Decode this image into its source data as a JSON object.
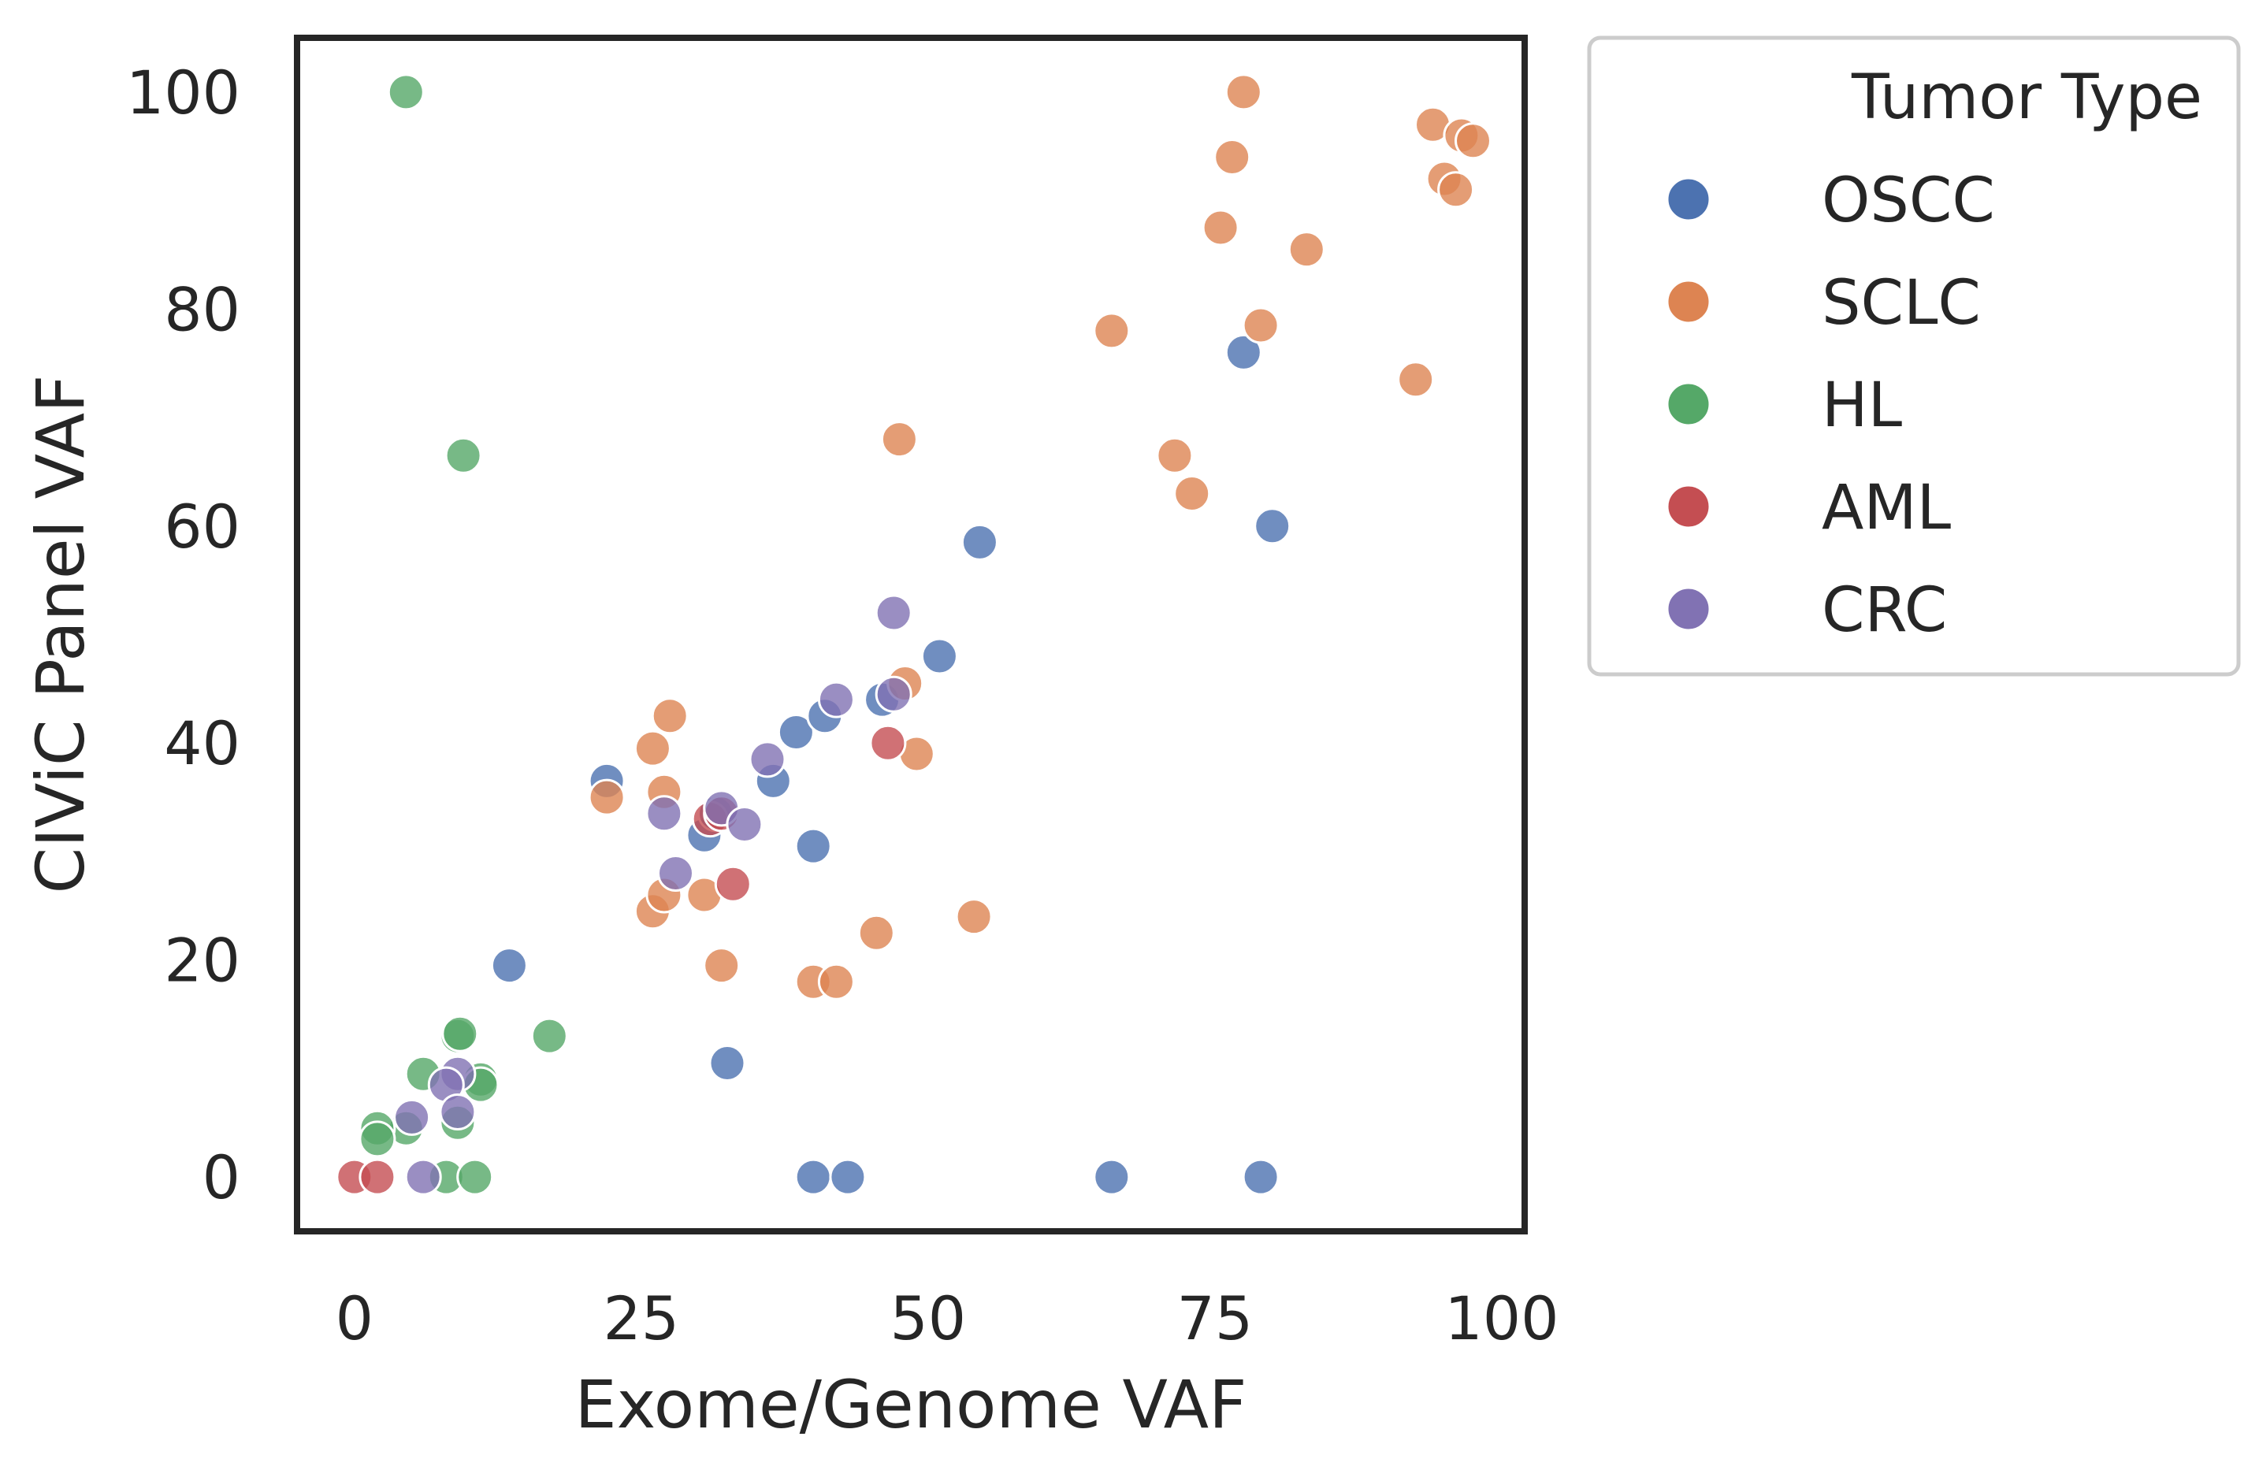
{
  "chart_data": {
    "type": "scatter",
    "xlabel": "Exome/Genome VAF",
    "ylabel": "CIViC Panel VAF",
    "xlim": [
      -5,
      102
    ],
    "ylim": [
      -5,
      105
    ],
    "xticks": [
      0,
      25,
      50,
      75,
      100
    ],
    "yticks": [
      0,
      20,
      40,
      60,
      80,
      100
    ],
    "grid": false,
    "legend": {
      "title": "Tumor Type",
      "placement": "outside-right-top"
    },
    "series": [
      {
        "name": "OSCC",
        "color": "#4c72b0",
        "points": [
          [
            22,
            36.5
          ],
          [
            30.5,
            31.5
          ],
          [
            31.5,
            33.5
          ],
          [
            36.5,
            36.5
          ],
          [
            38.5,
            41
          ],
          [
            41,
            42.5
          ],
          [
            46,
            44
          ],
          [
            51,
            48
          ],
          [
            54.5,
            58.5
          ],
          [
            40,
            30.5
          ],
          [
            13.5,
            19.5
          ],
          [
            32.5,
            10.5
          ],
          [
            40,
            0
          ],
          [
            43,
            0
          ],
          [
            66,
            0
          ],
          [
            79,
            0
          ],
          [
            77.5,
            76
          ],
          [
            80,
            60
          ]
        ]
      },
      {
        "name": "SCLC",
        "color": "#dd8452",
        "points": [
          [
            77.5,
            100
          ],
          [
            94,
            97
          ],
          [
            96.5,
            96
          ],
          [
            97.5,
            95.5
          ],
          [
            95,
            92
          ],
          [
            96,
            91
          ],
          [
            76.5,
            94
          ],
          [
            75.5,
            87.5
          ],
          [
            83,
            85.5
          ],
          [
            66,
            78
          ],
          [
            79,
            78.5
          ],
          [
            92.5,
            73.5
          ],
          [
            71.5,
            66.5
          ],
          [
            73,
            63
          ],
          [
            47.5,
            68
          ],
          [
            48,
            45.5
          ],
          [
            49,
            39
          ],
          [
            27.5,
            42.5
          ],
          [
            26,
            39.5
          ],
          [
            27,
            35.5
          ],
          [
            22,
            35
          ],
          [
            26,
            24.5
          ],
          [
            27,
            26
          ],
          [
            30.5,
            26
          ],
          [
            32,
            19.5
          ],
          [
            40,
            18
          ],
          [
            42,
            18
          ],
          [
            45.5,
            22.5
          ],
          [
            54,
            24
          ]
        ]
      },
      {
        "name": "HL",
        "color": "#55a868",
        "points": [
          [
            4.5,
            100
          ],
          [
            9.5,
            66.5
          ],
          [
            9,
            13
          ],
          [
            9.2,
            13.2
          ],
          [
            17,
            13
          ],
          [
            6,
            9.5
          ],
          [
            11,
            9
          ],
          [
            11,
            8.5
          ],
          [
            9,
            5
          ],
          [
            4.5,
            4.5
          ],
          [
            2,
            4.5
          ],
          [
            2,
            3.5
          ],
          [
            8,
            0
          ],
          [
            10.5,
            0
          ]
        ]
      },
      {
        "name": "AML",
        "color": "#c44e52",
        "points": [
          [
            0,
            0
          ],
          [
            2,
            0
          ],
          [
            31,
            33
          ],
          [
            32,
            33.5
          ],
          [
            33,
            27
          ],
          [
            46.5,
            40
          ]
        ]
      },
      {
        "name": "CRC",
        "color": "#8172b3",
        "points": [
          [
            47,
            52
          ],
          [
            42,
            44
          ],
          [
            47,
            44.5
          ],
          [
            36,
            38.5
          ],
          [
            32,
            34
          ],
          [
            34,
            32.5
          ],
          [
            27,
            33.5
          ],
          [
            28,
            28
          ],
          [
            9,
            9.5
          ],
          [
            8,
            8.5
          ],
          [
            9,
            6
          ],
          [
            5,
            5.5
          ],
          [
            6,
            0
          ]
        ]
      }
    ]
  }
}
